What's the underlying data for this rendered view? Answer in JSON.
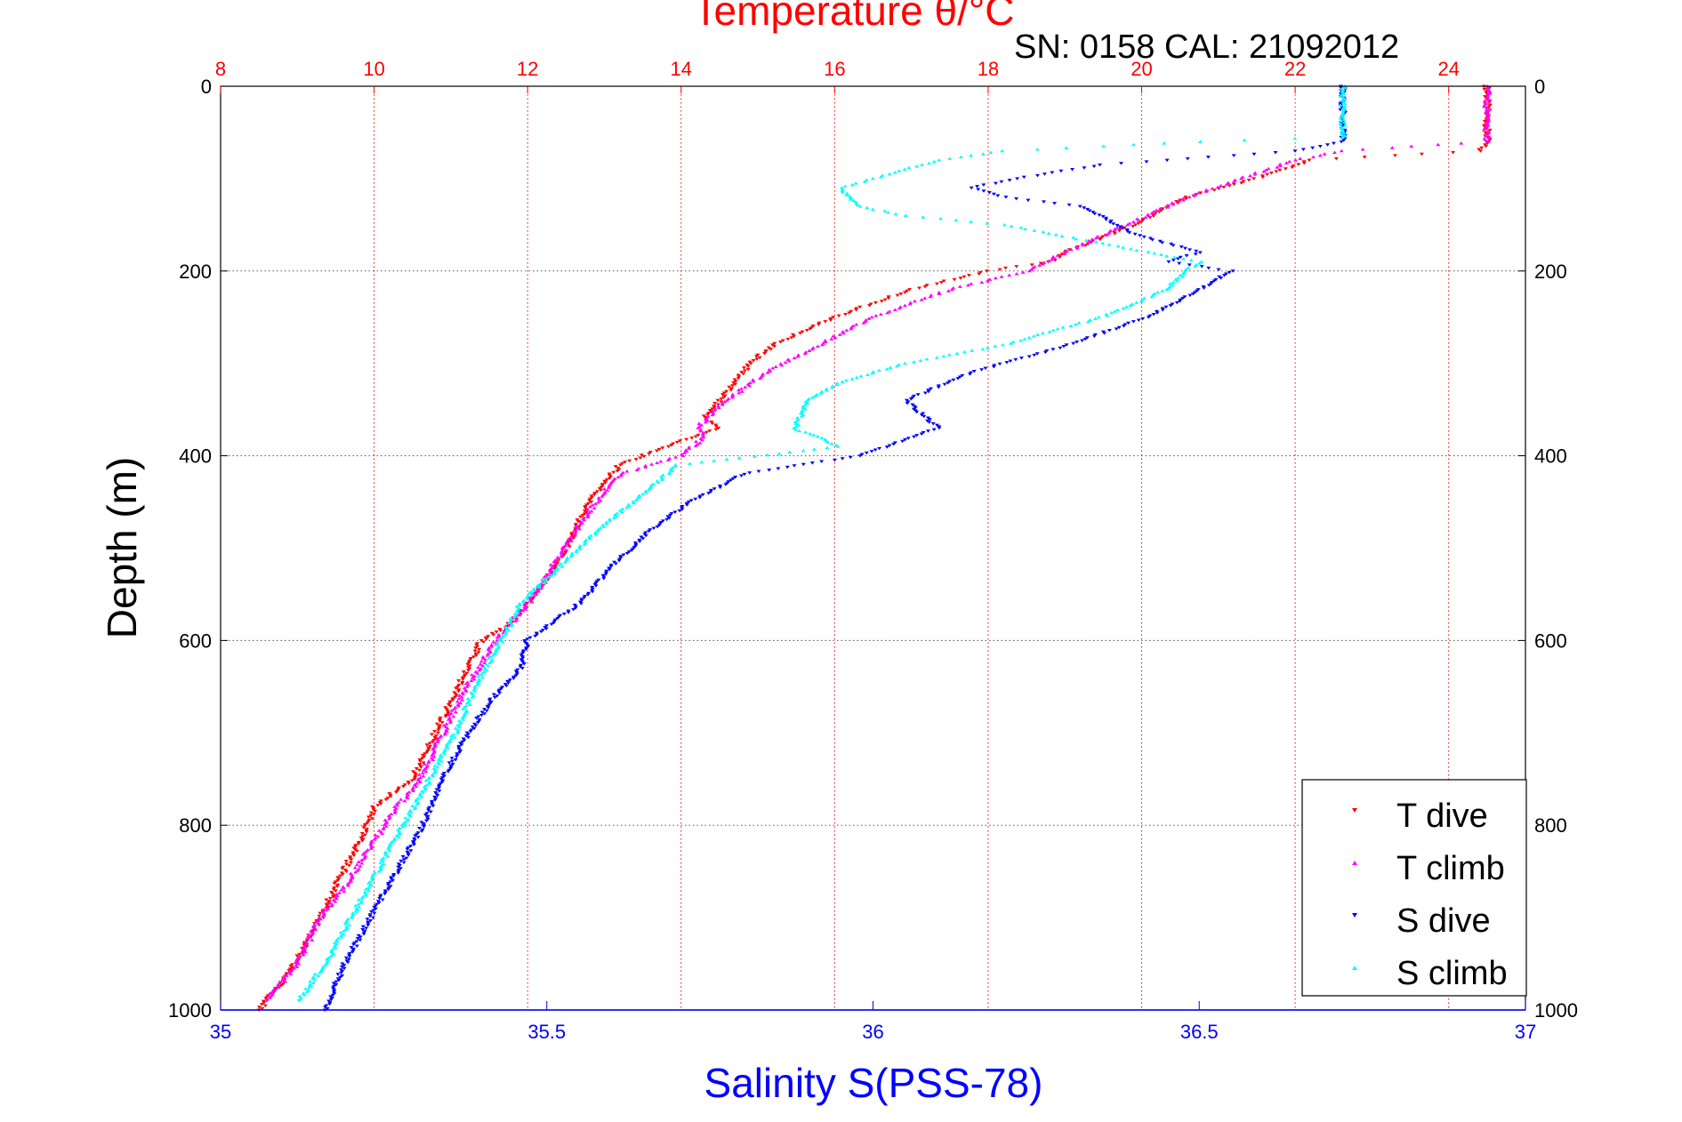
{
  "title": "Temperature θ/°C",
  "subtitle": "SN: 0158  CAL: 21092012",
  "chart_data": {
    "type": "scatter",
    "title": "Temperature θ/°C",
    "ylabel": "Depth (m)",
    "ylim": [
      0,
      1000
    ],
    "y_reversed": true,
    "yticks": [
      0,
      200,
      400,
      600,
      800,
      1000
    ],
    "x_top": {
      "label": "Temperature θ/°C",
      "lim": [
        8,
        25
      ],
      "ticks": [
        8,
        10,
        12,
        14,
        16,
        18,
        20,
        22,
        24
      ],
      "color": "#ff0000"
    },
    "x_bottom": {
      "label": "Salinity S(PSS-78)",
      "lim": [
        35,
        37
      ],
      "ticks": [
        35,
        35.5,
        36,
        36.5,
        37
      ],
      "color": "#0000ff"
    },
    "grid": true,
    "legend_position": "bottom-right",
    "series": [
      {
        "name": "T dive",
        "axis": "temperature",
        "color": "#ff0000",
        "marker": "triangle-down",
        "points": [
          [
            24.5,
            0
          ],
          [
            24.5,
            30
          ],
          [
            24.5,
            60
          ],
          [
            24.4,
            70
          ],
          [
            22.2,
            80
          ],
          [
            21.5,
            100
          ],
          [
            20.6,
            120
          ],
          [
            19.9,
            150
          ],
          [
            19.0,
            180
          ],
          [
            18.8,
            190
          ],
          [
            18.0,
            200
          ],
          [
            17.0,
            220
          ],
          [
            16.0,
            250
          ],
          [
            15.2,
            280
          ],
          [
            14.9,
            300
          ],
          [
            14.5,
            340
          ],
          [
            14.3,
            360
          ],
          [
            14.5,
            370
          ],
          [
            13.8,
            390
          ],
          [
            13.2,
            410
          ],
          [
            12.8,
            450
          ],
          [
            12.5,
            500
          ],
          [
            12.1,
            550
          ],
          [
            11.8,
            580
          ],
          [
            11.4,
            600
          ],
          [
            11.1,
            650
          ],
          [
            10.8,
            700
          ],
          [
            10.5,
            750
          ],
          [
            10.0,
            780
          ],
          [
            9.8,
            820
          ],
          [
            9.6,
            850
          ],
          [
            9.3,
            900
          ],
          [
            9.1,
            930
          ],
          [
            8.8,
            970
          ],
          [
            8.5,
            1000
          ]
        ]
      },
      {
        "name": "T climb",
        "axis": "temperature",
        "color": "#ff00ff",
        "marker": "triangle-up",
        "points": [
          [
            24.5,
            0
          ],
          [
            24.5,
            30
          ],
          [
            24.5,
            60
          ],
          [
            22.6,
            70
          ],
          [
            22.0,
            80
          ],
          [
            21.3,
            100
          ],
          [
            20.6,
            120
          ],
          [
            19.8,
            150
          ],
          [
            19.0,
            180
          ],
          [
            18.5,
            200
          ],
          [
            17.5,
            220
          ],
          [
            16.5,
            250
          ],
          [
            15.8,
            280
          ],
          [
            15.1,
            310
          ],
          [
            14.6,
            340
          ],
          [
            14.2,
            370
          ],
          [
            14.3,
            380
          ],
          [
            14.0,
            400
          ],
          [
            13.2,
            420
          ],
          [
            12.8,
            460
          ],
          [
            12.4,
            510
          ],
          [
            12.1,
            550
          ],
          [
            11.6,
            600
          ],
          [
            11.2,
            650
          ],
          [
            10.9,
            700
          ],
          [
            10.6,
            750
          ],
          [
            10.3,
            780
          ],
          [
            9.9,
            830
          ],
          [
            9.6,
            870
          ],
          [
            9.3,
            900
          ],
          [
            9.0,
            950
          ],
          [
            8.6,
            990
          ]
        ]
      },
      {
        "name": "S dive",
        "axis": "salinity",
        "color": "#0000ff",
        "marker": "triangle-down",
        "points": [
          [
            36.72,
            0
          ],
          [
            36.72,
            30
          ],
          [
            36.72,
            60
          ],
          [
            36.65,
            70
          ],
          [
            36.35,
            85
          ],
          [
            36.22,
            100
          ],
          [
            36.15,
            110
          ],
          [
            36.2,
            120
          ],
          [
            36.32,
            130
          ],
          [
            36.4,
            160
          ],
          [
            36.5,
            180
          ],
          [
            36.45,
            190
          ],
          [
            36.55,
            200
          ],
          [
            36.5,
            220
          ],
          [
            36.42,
            250
          ],
          [
            36.3,
            280
          ],
          [
            36.15,
            310
          ],
          [
            36.05,
            340
          ],
          [
            36.1,
            370
          ],
          [
            35.98,
            400
          ],
          [
            35.8,
            420
          ],
          [
            35.72,
            450
          ],
          [
            35.66,
            480
          ],
          [
            35.6,
            520
          ],
          [
            35.55,
            560
          ],
          [
            35.47,
            600
          ],
          [
            35.46,
            630
          ],
          [
            35.42,
            660
          ],
          [
            35.38,
            700
          ],
          [
            35.34,
            750
          ],
          [
            35.31,
            800
          ],
          [
            35.27,
            850
          ],
          [
            35.23,
            900
          ],
          [
            35.19,
            950
          ],
          [
            35.16,
            1000
          ]
        ]
      },
      {
        "name": "S climb",
        "axis": "salinity",
        "color": "#00ffff",
        "marker": "triangle-up",
        "points": [
          [
            36.72,
            0
          ],
          [
            36.72,
            30
          ],
          [
            36.72,
            55
          ],
          [
            36.5,
            60
          ],
          [
            36.2,
            70
          ],
          [
            36.1,
            80
          ],
          [
            36.05,
            90
          ],
          [
            36.0,
            100
          ],
          [
            35.95,
            110
          ],
          [
            35.98,
            130
          ],
          [
            36.05,
            140
          ],
          [
            36.2,
            150
          ],
          [
            36.35,
            170
          ],
          [
            36.5,
            190
          ],
          [
            36.48,
            200
          ],
          [
            36.45,
            220
          ],
          [
            36.35,
            250
          ],
          [
            36.2,
            280
          ],
          [
            36.05,
            300
          ],
          [
            35.95,
            320
          ],
          [
            35.9,
            340
          ],
          [
            35.88,
            370
          ],
          [
            35.95,
            390
          ],
          [
            35.7,
            410
          ],
          [
            35.65,
            440
          ],
          [
            35.58,
            480
          ],
          [
            35.52,
            520
          ],
          [
            35.46,
            560
          ],
          [
            35.43,
            600
          ],
          [
            35.39,
            650
          ],
          [
            35.36,
            700
          ],
          [
            35.32,
            750
          ],
          [
            35.28,
            800
          ],
          [
            35.24,
            850
          ],
          [
            35.2,
            900
          ],
          [
            35.16,
            950
          ],
          [
            35.12,
            990
          ]
        ]
      }
    ]
  }
}
